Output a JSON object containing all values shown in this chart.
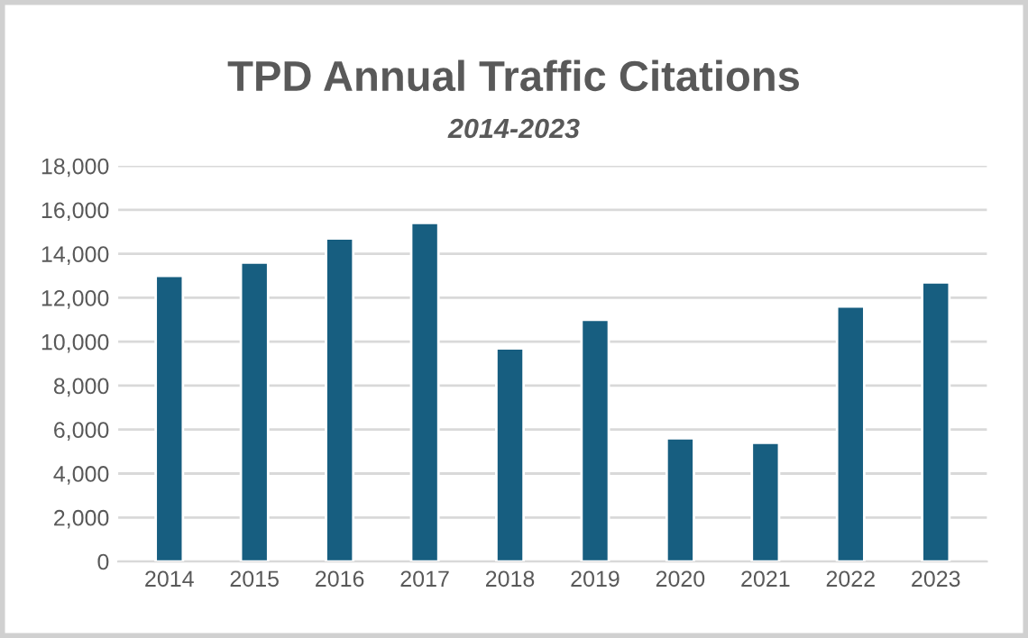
{
  "chart_data": {
    "type": "bar",
    "title": "TPD Annual Traffic Citations",
    "subtitle": "2014-2023",
    "categories": [
      "2014",
      "2015",
      "2016",
      "2017",
      "2018",
      "2019",
      "2020",
      "2021",
      "2022",
      "2023"
    ],
    "values": [
      13000,
      13600,
      14700,
      15400,
      9700,
      11000,
      5600,
      5400,
      11600,
      12700
    ],
    "color": "#175e80",
    "ylim": [
      0,
      18000
    ],
    "yticks": [
      {
        "value": 0,
        "label": "0"
      },
      {
        "value": 2000,
        "label": "2,000"
      },
      {
        "value": 4000,
        "label": "4,000"
      },
      {
        "value": 6000,
        "label": "6,000"
      },
      {
        "value": 8000,
        "label": "8,000"
      },
      {
        "value": 10000,
        "label": "10,000"
      },
      {
        "value": 12000,
        "label": "12,000"
      },
      {
        "value": 14000,
        "label": "14,000"
      },
      {
        "value": 16000,
        "label": "16,000"
      },
      {
        "value": 18000,
        "label": "18,000"
      }
    ],
    "grid": "y"
  }
}
